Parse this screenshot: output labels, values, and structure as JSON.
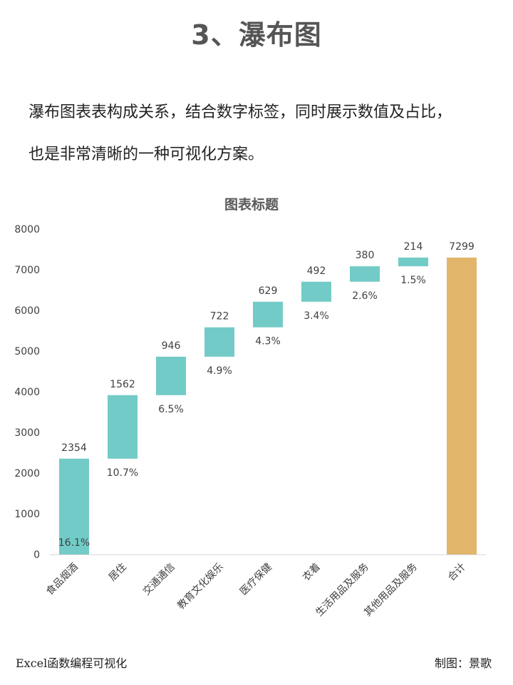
{
  "page": {
    "section_title": "3、瀑布图",
    "intro_lines": [
      "瀑布图表表构成关系，结合数字标签，同时展示数值及占比，",
      "也是非常清晰的一种可视化方案。"
    ],
    "footer_left": "Excel函数编程可视化",
    "footer_right": "制图：景歌"
  },
  "chart_data": {
    "type": "bar",
    "subtype": "waterfall",
    "title": "图表标题",
    "xlabel": "",
    "ylabel": "",
    "ylim": [
      0,
      8000
    ],
    "yticks": [
      0,
      1000,
      2000,
      3000,
      4000,
      5000,
      6000,
      7000,
      8000
    ],
    "grid": false,
    "categories": [
      "食品烟酒",
      "居住",
      "交通通信",
      "教育文化娱乐",
      "医疗保健",
      "衣着",
      "生活用品及服务",
      "其他用品及服务",
      "合计"
    ],
    "values": [
      2354,
      1562,
      946,
      722,
      629,
      492,
      380,
      214,
      7299
    ],
    "percent_labels": [
      "16.1%",
      "10.7%",
      "6.5%",
      "4.9%",
      "4.3%",
      "3.4%",
      "2.6%",
      "1.5%",
      ""
    ],
    "is_total": [
      false,
      false,
      false,
      false,
      false,
      false,
      false,
      false,
      true
    ],
    "colors": {
      "increase": "#72CBC6",
      "total": "#E1B56A",
      "axis": "#D9D9D9",
      "text": "#404040"
    }
  }
}
